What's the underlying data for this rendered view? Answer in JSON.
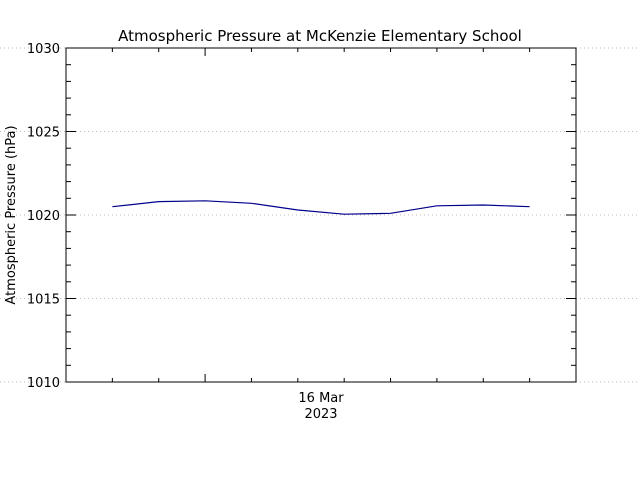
{
  "chart_data": {
    "type": "line",
    "title": "Atmospheric Pressure at McKenzie Elementary School",
    "xlabel": "",
    "ylabel": "Atmospheric Pressure (hPa)",
    "ylim": [
      1010,
      1030
    ],
    "y_ticks": [
      1010,
      1015,
      1020,
      1025,
      1030
    ],
    "x_tick_label": {
      "day": "16 Mar",
      "year": "2023"
    },
    "grid": true,
    "legend": "none",
    "series": [
      {
        "color": "#00008b",
        "x": [
          "2023-03-15 18:00",
          "2023-03-15 21:00",
          "2023-03-16 00:00",
          "2023-03-16 03:00",
          "2023-03-16 06:00",
          "2023-03-16 09:00",
          "2023-03-16 12:00",
          "2023-03-16 15:00",
          "2023-03-16 18:00",
          "2023-03-16 21:00"
        ],
        "y": [
          1020.5,
          1020.8,
          1020.85,
          1020.7,
          1020.3,
          1020.05,
          1020.1,
          1020.55,
          1020.6,
          1020.5
        ]
      }
    ]
  }
}
